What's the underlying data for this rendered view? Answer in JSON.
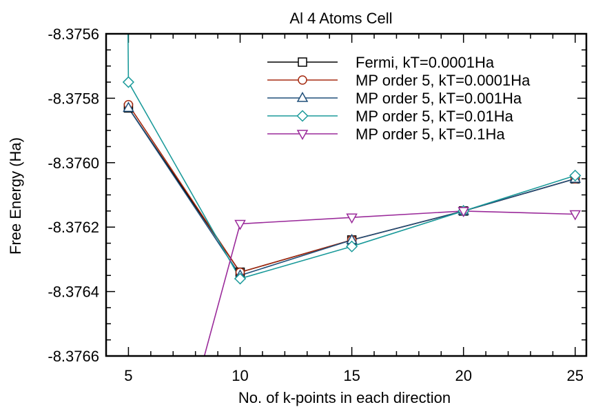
{
  "chart_data": {
    "type": "line",
    "title": "Al 4 Atoms Cell",
    "xlabel": "No. of k-points in each direction",
    "ylabel": "Free Energy (Ha)",
    "xlim": [
      4,
      25.5
    ],
    "ylim": [
      -8.3766,
      -8.3756
    ],
    "xticks": [
      5,
      10,
      15,
      20,
      25
    ],
    "xtick_labels": [
      "5",
      "10",
      "15",
      "20",
      "25"
    ],
    "yticks": [
      -8.3756,
      -8.3758,
      -8.376,
      -8.3762,
      -8.3764,
      -8.3766
    ],
    "ytick_labels": [
      "-8.3756",
      "-8.3758",
      "-8.3760",
      "-8.3762",
      "-8.3764",
      "-8.3766"
    ],
    "grid": false,
    "legend_position": "top-right",
    "series": [
      {
        "name": "Fermi, kT=0.0001Ha",
        "color": "#000000",
        "marker": "square",
        "x": [
          5,
          10,
          15,
          20,
          25
        ],
        "y": [
          -8.37583,
          -8.37634,
          -8.37624,
          -8.37615,
          -8.37605
        ]
      },
      {
        "name": "MP order 5, kT=0.0001Ha",
        "color": "#a52a10",
        "marker": "circle",
        "x": [
          5,
          10,
          15,
          20,
          25
        ],
        "y": [
          -8.37582,
          -8.37634,
          -8.37624,
          -8.37615,
          -8.37605
        ]
      },
      {
        "name": "MP order 5, kT=0.001Ha",
        "color": "#1f4e79",
        "marker": "triangle-up",
        "x": [
          5,
          10,
          15,
          20,
          25
        ],
        "y": [
          -8.37583,
          -8.37635,
          -8.37624,
          -8.37615,
          -8.37605
        ]
      },
      {
        "name": "MP order 5, kT=0.01Ha",
        "color": "#1a9a9a",
        "marker": "diamond",
        "x": [
          4.98,
          5,
          10,
          15,
          20,
          25
        ],
        "y": [
          -8.3756,
          -8.37575,
          -8.37636,
          -8.37626,
          -8.37615,
          -8.37604
        ]
      },
      {
        "name": "MP order 5, kT=0.1Ha",
        "color": "#9a2a9a",
        "marker": "triangle-down",
        "x": [
          8.4,
          10,
          15,
          20,
          25
        ],
        "y": [
          -8.3766,
          -8.37619,
          -8.37617,
          -8.37615,
          -8.37616
        ],
        "marker_indices": [
          1,
          2,
          3,
          4
        ]
      }
    ]
  }
}
